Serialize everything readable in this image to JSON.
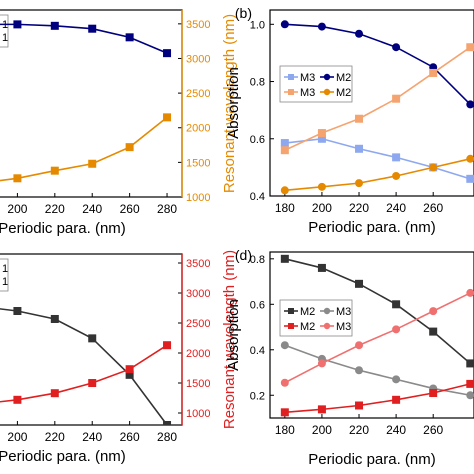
{
  "chart_data": [
    {
      "panel": "a",
      "type": "line",
      "x": [
        180,
        200,
        220,
        240,
        260,
        280
      ],
      "x_ticks": [
        "200",
        "220",
        "240",
        "260",
        "280"
      ],
      "xlabel": "Periodic para. (nm)",
      "ylim_left": [
        0.4,
        1.05
      ],
      "ylim_right": [
        1000,
        3700
      ],
      "right_ticks": [
        "1000",
        "1500",
        "2000",
        "2500",
        "3000",
        "3500"
      ],
      "ylabel_right": "Resonant wavelength (nm)",
      "legend_fragments": [
        "1",
        "1"
      ],
      "series": [
        {
          "axis": "left",
          "color": "#00007f",
          "marker": "square",
          "values": [
            1.0,
            1.0,
            0.995,
            0.985,
            0.955,
            0.9
          ]
        },
        {
          "axis": "right",
          "color": "#e58a00",
          "marker": "square",
          "values": [
            1200,
            1270,
            1380,
            1480,
            1720,
            2150
          ]
        }
      ]
    },
    {
      "panel": "b",
      "panel_label": "(b)",
      "type": "line",
      "x": [
        180,
        200,
        220,
        240,
        260,
        280
      ],
      "x_ticks": [
        "180",
        "200",
        "220",
        "240",
        "260"
      ],
      "xlabel": "Periodic para. (nm)",
      "ylabel": "Absorption",
      "ylim": [
        0.4,
        1.05
      ],
      "y_ticks": [
        "0.4",
        "0.6",
        "0.8",
        "1.0"
      ],
      "legend": [
        "M3",
        "M2",
        "M3",
        "M2"
      ],
      "series": [
        {
          "name": "M2",
          "color": "#00007f",
          "marker": "circle",
          "values": [
            1.0,
            0.992,
            0.967,
            0.92,
            0.85,
            0.72
          ]
        },
        {
          "name": "M3",
          "color": "#8ea8f0",
          "marker": "square",
          "values": [
            0.585,
            0.6,
            0.565,
            0.535,
            0.5,
            0.46
          ]
        },
        {
          "name": "M3",
          "color": "#f5a470",
          "marker": "square",
          "values": [
            0.56,
            0.62,
            0.67,
            0.74,
            0.83,
            0.92
          ]
        },
        {
          "name": "M2",
          "color": "#e58a00",
          "marker": "circle",
          "values": [
            0.42,
            0.432,
            0.445,
            0.47,
            0.5,
            0.53
          ]
        }
      ]
    },
    {
      "panel": "c",
      "type": "line",
      "x": [
        180,
        200,
        220,
        240,
        260,
        280
      ],
      "x_ticks": [
        "200",
        "220",
        "240",
        "260",
        "280"
      ],
      "xlabel": "Periodic para. (nm)",
      "ylim_left": [
        0.1,
        0.85
      ],
      "ylim_right": [
        800,
        3650
      ],
      "right_ticks": [
        "1000",
        "1500",
        "2000",
        "2500",
        "3000",
        "3500"
      ],
      "ylabel_right": "Resonant wavelength (nm)",
      "legend_fragments": [
        "1",
        "1"
      ],
      "series": [
        {
          "axis": "left",
          "color": "#333333",
          "marker": "square",
          "values": [
            0.62,
            0.6,
            0.565,
            0.48,
            0.32,
            0.1
          ]
        },
        {
          "axis": "right",
          "color": "#e02020",
          "marker": "square",
          "values": [
            1150,
            1220,
            1330,
            1500,
            1730,
            2130
          ]
        }
      ]
    },
    {
      "panel": "d",
      "panel_label": "(d)",
      "type": "line",
      "x": [
        180,
        200,
        220,
        240,
        260,
        280
      ],
      "x_ticks": [
        "180",
        "200",
        "220",
        "240",
        "260"
      ],
      "xlabel": "Periodic para. (nm)",
      "ylabel": "Absorption",
      "ylim": [
        0.1,
        0.83
      ],
      "y_ticks": [
        "0.2",
        "0.4",
        "0.6",
        "0.8"
      ],
      "legend": [
        "M2",
        "M3",
        "M2",
        "M3"
      ],
      "series": [
        {
          "name": "M2",
          "color": "#333333",
          "marker": "square",
          "values": [
            0.8,
            0.76,
            0.69,
            0.6,
            0.48,
            0.34
          ]
        },
        {
          "name": "M3",
          "color": "#8a8a8a",
          "marker": "circle",
          "values": [
            0.42,
            0.36,
            0.31,
            0.27,
            0.23,
            0.2
          ]
        },
        {
          "name": "M2",
          "color": "#e02020",
          "marker": "square",
          "values": [
            0.125,
            0.138,
            0.155,
            0.18,
            0.21,
            0.25
          ]
        },
        {
          "name": "M3",
          "color": "#f07070",
          "marker": "circle",
          "values": [
            0.255,
            0.34,
            0.42,
            0.49,
            0.57,
            0.65
          ]
        }
      ]
    }
  ]
}
